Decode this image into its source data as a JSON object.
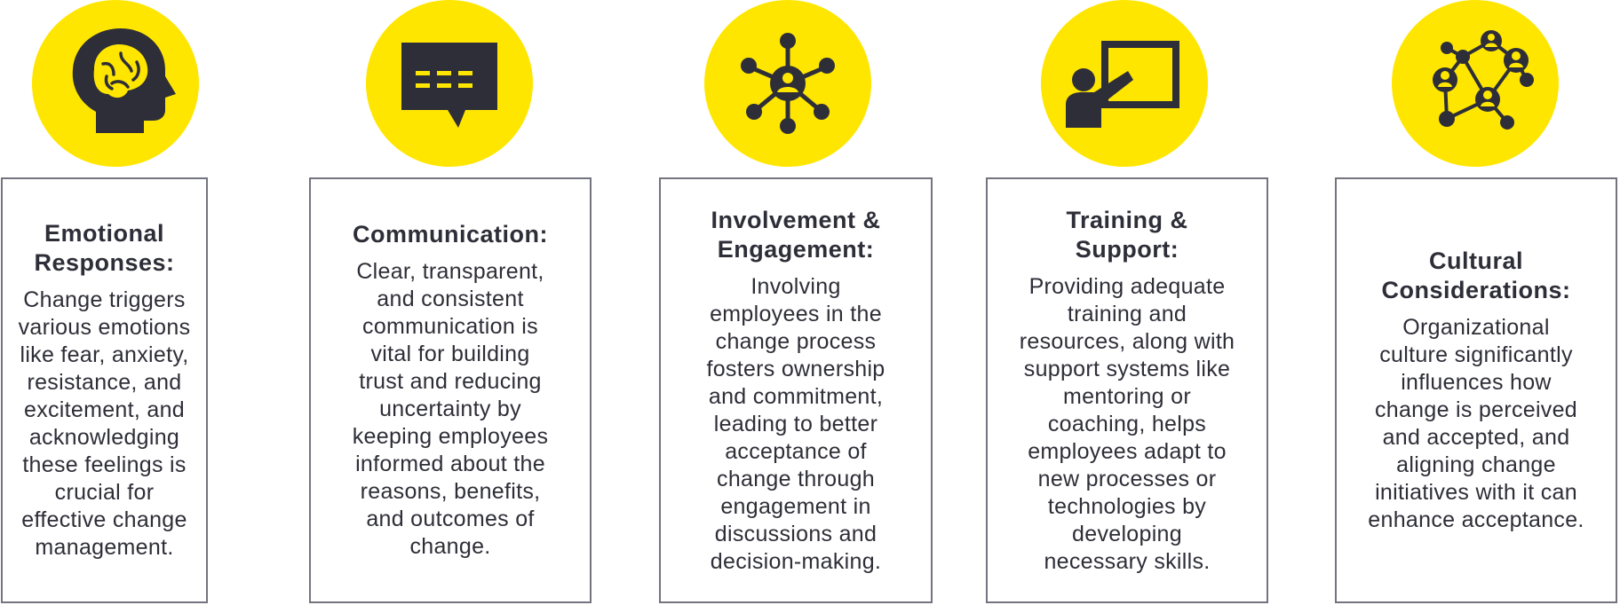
{
  "accent_color": "#ffe600",
  "icon_color": "#2e2e38",
  "cards": [
    {
      "icon": "brain-head-icon",
      "title_lines": [
        "Emotional",
        "Responses:"
      ],
      "body_lines": [
        "Change triggers",
        "various emotions",
        "like fear, anxiety,",
        "resistance, and",
        "excitement, and",
        "acknowledging",
        "these feelings is",
        "crucial for",
        "effective change",
        "management."
      ]
    },
    {
      "icon": "chat-bubble-icon",
      "title_lines": [
        "Communication:"
      ],
      "body_lines": [
        "Clear, transparent,",
        "and consistent",
        "communication is",
        "vital for building",
        "trust and reducing",
        "uncertainty by",
        "keeping employees",
        "informed about the",
        "reasons, benefits,",
        "and outcomes of",
        "change."
      ]
    },
    {
      "icon": "network-person-icon",
      "title_lines": [
        "Involvement &",
        "Engagement:"
      ],
      "body_lines": [
        "Involving",
        "employees in the",
        "change process",
        "fosters ownership",
        "and commitment,",
        "leading to better",
        "acceptance of",
        "change through",
        "engagement in",
        "discussions and",
        "decision-making."
      ]
    },
    {
      "icon": "presenter-board-icon",
      "title_lines": [
        "Training &",
        "Support:"
      ],
      "body_lines": [
        "Providing adequate",
        "training and",
        "resources, along with",
        "support systems like",
        "mentoring or",
        "coaching, helps",
        "employees adapt to",
        "new processes or",
        "technologies by",
        "developing",
        "necessary skills."
      ]
    },
    {
      "icon": "people-network-icon",
      "title_lines": [
        "Cultural",
        "Considerations:"
      ],
      "body_lines": [
        "Organizational",
        "culture significantly",
        "influences how",
        "change is perceived",
        "and accepted, and",
        "aligning change",
        "initiatives with it can",
        "enhance acceptance."
      ]
    }
  ]
}
